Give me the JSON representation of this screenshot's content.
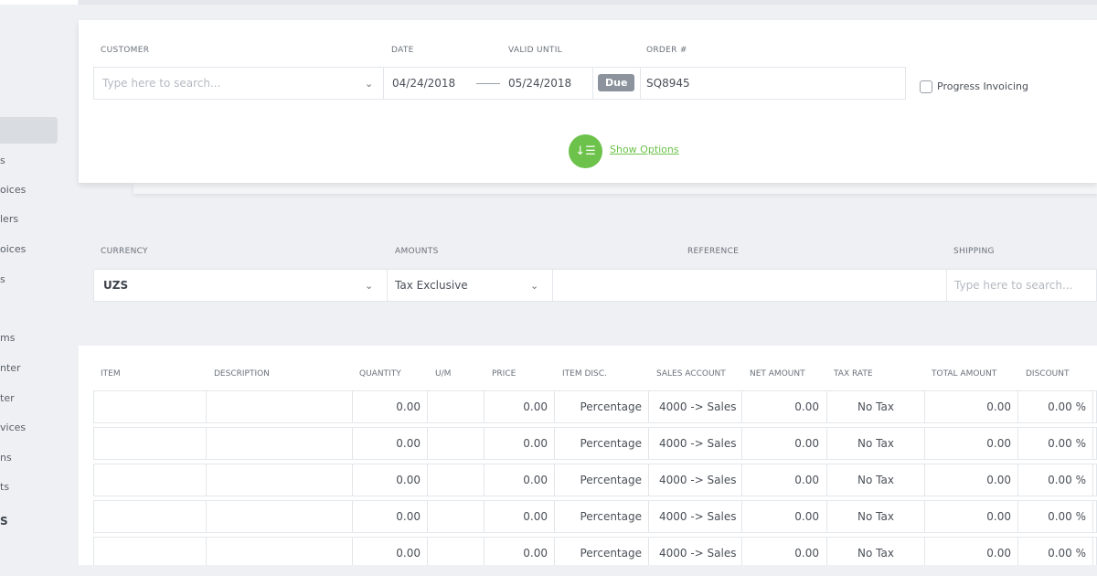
{
  "sidebar": {
    "items": [
      "s",
      "oices",
      "lers",
      "oices",
      "s",
      "ms",
      "nter",
      "ter",
      "vices",
      "ns",
      "ts",
      "S"
    ]
  },
  "header": {
    "customer_label": "CUSTOMER",
    "customer_placeholder": "Type here to search...",
    "date_label": "DATE",
    "date_value": "04/24/2018",
    "valid_until_label": "VALID UNTIL",
    "valid_until_value": "05/24/2018",
    "due_badge": "Due",
    "order_label": "ORDER #",
    "order_value": "SQ8945",
    "progress_invoicing_label": "Progress Invoicing",
    "show_options_label": "Show Options"
  },
  "currency_section": {
    "currency_label": "CURRENCY",
    "currency_value": "UZS",
    "amounts_label": "AMOUNTS",
    "amounts_value": "Tax Exclusive",
    "reference_label": "REFERENCE",
    "shipping_label": "SHIPPING",
    "shipping_placeholder": "Type here to search..."
  },
  "table": {
    "headers": [
      "ITEM",
      "DESCRIPTION",
      "QUANTITY",
      "U/M",
      "PRICE",
      "ITEM DISC.",
      "SALES ACCOUNT",
      "NET AMOUNT",
      "TAX RATE",
      "TOTAL AMOUNT",
      "DISCOUNT"
    ],
    "rows": [
      {
        "quantity": "0.00",
        "price": "0.00",
        "item_disc": "Percentage",
        "sales_account": "4000 -> Sales",
        "net_amount": "0.00",
        "tax_rate": "No Tax",
        "total_amount": "0.00",
        "discount": "0.00 %"
      },
      {
        "quantity": "0.00",
        "price": "0.00",
        "item_disc": "Percentage",
        "sales_account": "4000 -> Sales",
        "net_amount": "0.00",
        "tax_rate": "No Tax",
        "total_amount": "0.00",
        "discount": "0.00 %"
      },
      {
        "quantity": "0.00",
        "price": "0.00",
        "item_disc": "Percentage",
        "sales_account": "4000 -> Sales",
        "net_amount": "0.00",
        "tax_rate": "No Tax",
        "total_amount": "0.00",
        "discount": "0.00 %"
      },
      {
        "quantity": "0.00",
        "price": "0.00",
        "item_disc": "Percentage",
        "sales_account": "4000 -> Sales",
        "net_amount": "0.00",
        "tax_rate": "No Tax",
        "total_amount": "0.00",
        "discount": "0.00 %"
      },
      {
        "quantity": "0.00",
        "price": "0.00",
        "item_disc": "Percentage",
        "sales_account": "4000 -> Sales",
        "net_amount": "0.00",
        "tax_rate": "No Tax",
        "total_amount": "0.00",
        "discount": "0.00 %"
      }
    ]
  }
}
